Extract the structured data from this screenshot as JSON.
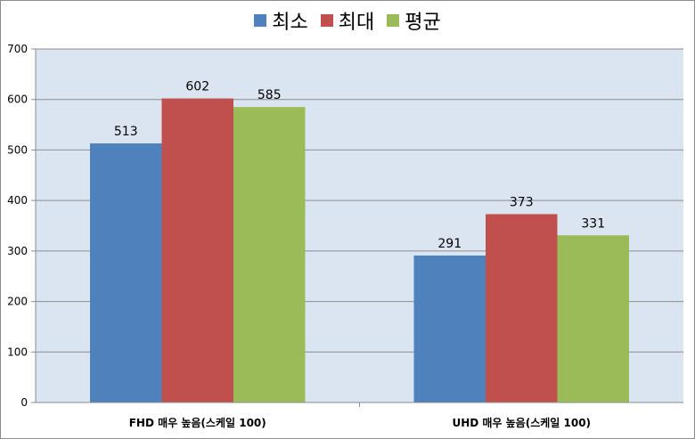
{
  "chart_data": {
    "type": "bar",
    "categories": [
      "FHD 매우 높음(스케일 100)",
      "UHD 매우 높음(스케일 100)"
    ],
    "series": [
      {
        "name": "최소",
        "values": [
          513,
          291
        ],
        "color": "#4f81bd"
      },
      {
        "name": "최대",
        "values": [
          602,
          373
        ],
        "color": "#c0504d"
      },
      {
        "name": "평균",
        "values": [
          585,
          331
        ],
        "color": "#9bbb59"
      }
    ],
    "title": "",
    "xlabel": "",
    "ylabel": "",
    "ylim": [
      0,
      700
    ],
    "yticks": [
      0,
      100,
      200,
      300,
      400,
      500,
      600,
      700
    ],
    "grid": true,
    "legend_position": "top",
    "plot_background": "#dbe5f1"
  }
}
